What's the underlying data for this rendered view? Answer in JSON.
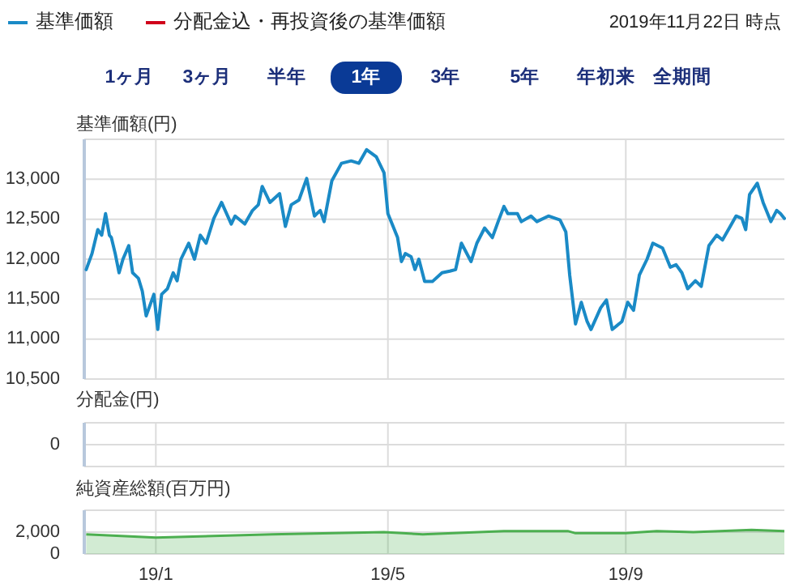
{
  "chart_data": [
    {
      "type": "line",
      "ylabel": "基準価額(円)",
      "xlim": [
        "2018-11-25",
        "2019-11-22"
      ],
      "xticks": [
        {
          "value": "2019-01-01",
          "label": null
        },
        {
          "value": "2019-05-01",
          "label": null
        },
        {
          "value": "2019-09-01",
          "label": null
        }
      ],
      "ylim": [
        10500,
        13500
      ],
      "yticks": [
        {
          "value": 10500,
          "label": "10,500"
        },
        {
          "value": 11000,
          "label": "11,000"
        },
        {
          "value": 11500,
          "label": "11,500"
        },
        {
          "value": 12000,
          "label": "12,000"
        },
        {
          "value": 12500,
          "label": "12,500"
        },
        {
          "value": 13000,
          "label": "13,000"
        },
        {
          "value": 13500,
          "label": null
        }
      ],
      "grid": true,
      "legend": "top left",
      "tick_labels": "y",
      "annotations": [
        "2019年11月22日 時点",
        "1ヶ月",
        "3ヶ月",
        "半年",
        "1年",
        "3年",
        "5年",
        "年初来",
        "全期間"
      ],
      "x": [
        "2018-11-26",
        "2018-11-29",
        "2018-12-02",
        "2018-12-04",
        "2018-12-06",
        "2018-12-08",
        "2018-12-09",
        "2018-12-11",
        "2018-12-13",
        "2018-12-15",
        "2018-12-18",
        "2018-12-20",
        "2018-12-23",
        "2018-12-25",
        "2018-12-27",
        "2018-12-31",
        "2019-01-02",
        "2019-01-04",
        "2019-01-07",
        "2019-01-10",
        "2019-01-12",
        "2019-01-14",
        "2019-01-18",
        "2019-01-21",
        "2019-01-24",
        "2019-01-27",
        "2019-01-31",
        "2019-02-04",
        "2019-02-09",
        "2019-02-11",
        "2019-02-16",
        "2019-02-20",
        "2019-02-23",
        "2019-02-25",
        "2019-03-01",
        "2019-03-06",
        "2019-03-09",
        "2019-03-12",
        "2019-03-16",
        "2019-03-20",
        "2019-03-24",
        "2019-03-27",
        "2019-03-29",
        "2019-04-02",
        "2019-04-07",
        "2019-04-12",
        "2019-04-16",
        "2019-04-20",
        "2019-04-25",
        "2019-04-29",
        "2019-05-01",
        "2019-05-06",
        "2019-05-08",
        "2019-05-10",
        "2019-05-13",
        "2019-05-15",
        "2019-05-17",
        "2019-05-20",
        "2019-05-24",
        "2019-05-29",
        "2019-06-02",
        "2019-06-05",
        "2019-06-08",
        "2019-06-13",
        "2019-06-16",
        "2019-06-20",
        "2019-06-24",
        "2019-06-27",
        "2019-06-30",
        "2019-07-02",
        "2019-07-07",
        "2019-07-09",
        "2019-07-14",
        "2019-07-17",
        "2019-07-23",
        "2019-07-29",
        "2019-08-01",
        "2019-08-03",
        "2019-08-06",
        "2019-08-09",
        "2019-08-12",
        "2019-08-14",
        "2019-08-19",
        "2019-08-22",
        "2019-08-25",
        "2019-08-30",
        "2019-09-02",
        "2019-09-05",
        "2019-09-08",
        "2019-09-12",
        "2019-09-15",
        "2019-09-20",
        "2019-09-24",
        "2019-09-27",
        "2019-09-30",
        "2019-10-03",
        "2019-10-07",
        "2019-10-10",
        "2019-10-14",
        "2019-10-18",
        "2019-10-21",
        "2019-10-25",
        "2019-10-28",
        "2019-10-31",
        "2019-11-02",
        "2019-11-04",
        "2019-11-08",
        "2019-11-11",
        "2019-11-15",
        "2019-11-18",
        "2019-11-20",
        "2019-11-22"
      ],
      "series": [
        {
          "name": "基準価額",
          "color": "#1a8ac6",
          "values": [
            11870,
            12070,
            12370,
            12300,
            12570,
            12300,
            12270,
            12070,
            11830,
            12000,
            12170,
            11830,
            11760,
            11600,
            11290,
            11560,
            11120,
            11560,
            11630,
            11830,
            11730,
            12000,
            12200,
            12000,
            12300,
            12200,
            12510,
            12710,
            12440,
            12540,
            12440,
            12610,
            12680,
            12910,
            12710,
            12820,
            12410,
            12680,
            12740,
            13010,
            12540,
            12610,
            12470,
            12980,
            13200,
            13230,
            13200,
            13370,
            13280,
            13080,
            12570,
            12270,
            11970,
            12070,
            12030,
            11870,
            12000,
            11720,
            11720,
            11830,
            11850,
            11870,
            12200,
            11970,
            12200,
            12390,
            12270,
            12470,
            12660,
            12570,
            12570,
            12470,
            12540,
            12470,
            12540,
            12490,
            12340,
            11800,
            11190,
            11460,
            11220,
            11120,
            11390,
            11490,
            11120,
            11220,
            11460,
            11360,
            11800,
            12000,
            12200,
            12140,
            11900,
            11930,
            11830,
            11630,
            11730,
            11660,
            12170,
            12300,
            12240,
            12410,
            12540,
            12510,
            12370,
            12810,
            12950,
            12710,
            12470,
            12610,
            12570,
            12510
          ]
        },
        {
          "name": "分配金込・再投資後の基準価額",
          "color": "#d0021b",
          "values": [
            null,
            null,
            null,
            null,
            null,
            null,
            null,
            null,
            null,
            null,
            null,
            null,
            null,
            null,
            null,
            null,
            null,
            null,
            null,
            null,
            null,
            null,
            null,
            null,
            null,
            null,
            null,
            null,
            null,
            null,
            null,
            null,
            null,
            null,
            null,
            null,
            null,
            null,
            null,
            null,
            null,
            null,
            null,
            null,
            null,
            null,
            null,
            null,
            null,
            null,
            null,
            null,
            null,
            null,
            null,
            null,
            null,
            null,
            null,
            null,
            null,
            null,
            null,
            null,
            null,
            null,
            null,
            null,
            null,
            null,
            null,
            null,
            null,
            null,
            null,
            null,
            null,
            null,
            null,
            null,
            null,
            null,
            null,
            null,
            null,
            null,
            null,
            null,
            null,
            null,
            null,
            null,
            null,
            null,
            null,
            null,
            null,
            null,
            null,
            null,
            null,
            null,
            null,
            null,
            null,
            null,
            null,
            null,
            null,
            null,
            null,
            null
          ]
        }
      ]
    },
    {
      "type": "other",
      "ylabel": "分配金(円)",
      "annotations": [
        "0"
      ]
    },
    {
      "type": "area",
      "ylabel": "純資産総額(百万円)",
      "xlim": [
        "2018-11-25",
        "2019-11-22"
      ],
      "xticks": [
        {
          "value": "2019-01-01",
          "label": "19/1"
        },
        {
          "value": "2019-05-01",
          "label": "19/5"
        },
        {
          "value": "2019-09-01",
          "label": "19/9"
        }
      ],
      "ylim": [
        0,
        4000
      ],
      "yticks": [
        0,
        {
          "value": 2000,
          "label": "2,000"
        },
        {
          "value": 4000,
          "label": null
        }
      ],
      "grid": true,
      "x": [
        "2018-11-26",
        "2019-01-01",
        "2019-03-02",
        "2019-04-29",
        "2019-05-19",
        "2019-06-30",
        "2019-08-02",
        "2019-08-06",
        "2019-09-01",
        "2019-09-17",
        "2019-10-06",
        "2019-11-05",
        "2019-11-22"
      ],
      "series": [
        {
          "color": "#4caf50",
          "values": [
            1800,
            1500,
            1800,
            2000,
            1800,
            2100,
            2100,
            1900,
            1900,
            2100,
            2000,
            2200,
            2100
          ]
        }
      ]
    }
  ]
}
